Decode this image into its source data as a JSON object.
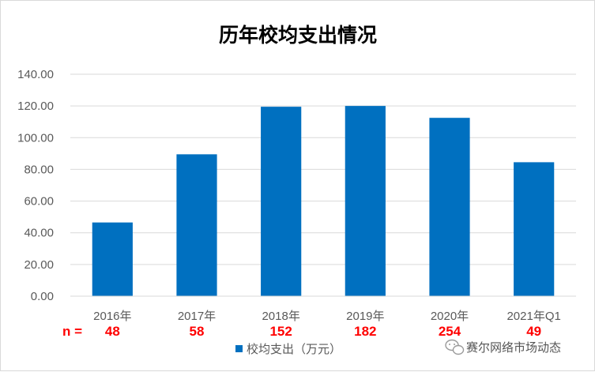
{
  "chart_data": {
    "type": "bar",
    "title": "历年校均支出情况",
    "categories": [
      "2016年",
      "2017年",
      "2018年",
      "2019年",
      "2020年",
      "2021年Q1"
    ],
    "series": [
      {
        "name": "校均支出（万元）",
        "values": [
          46.5,
          89.5,
          119.5,
          120.0,
          112.5,
          84.5
        ],
        "color": "#0070c0"
      }
    ],
    "ylim": [
      0,
      140
    ],
    "yticks": [
      "0.00",
      "20.00",
      "40.00",
      "60.00",
      "80.00",
      "100.00",
      "120.00",
      "140.00"
    ],
    "grid": true,
    "legend_position": "bottom",
    "sample_prefix": "n  =",
    "sample_sizes": [
      "48",
      "58",
      "152",
      "182",
      "254",
      "49"
    ],
    "sample_color": "#ff0000",
    "gridline_color": "#d9d9d9"
  },
  "watermark": {
    "text": "赛尔网络市场动态",
    "icon": "wechat-icon"
  }
}
